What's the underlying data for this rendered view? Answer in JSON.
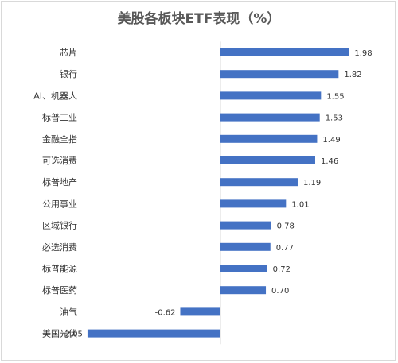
{
  "chart_data": {
    "type": "bar",
    "orientation": "horizontal",
    "title": "美股各板块ETF表现（%）",
    "categories": [
      "芯片",
      "银行",
      "AI、机器人",
      "标普工业",
      "金融全指",
      "可选消费",
      "标普地产",
      "公用事业",
      "区域银行",
      "必选消费",
      "标普能源",
      "标普医药",
      "油气",
      "美国光伏"
    ],
    "values": [
      1.98,
      1.82,
      1.55,
      1.53,
      1.49,
      1.46,
      1.19,
      1.01,
      0.78,
      0.77,
      0.72,
      0.7,
      -0.62,
      -2.05
    ],
    "value_labels": [
      "1.98",
      "1.82",
      "1.55",
      "1.53",
      "1.49",
      "1.46",
      "1.19",
      "1.01",
      "0.78",
      "0.77",
      "0.72",
      "0.70",
      "-0.62",
      "-2.05"
    ],
    "xlim": [
      -2.05,
      1.98
    ],
    "grid": false,
    "legend": "none",
    "bar_color": "#4472c4",
    "axis_color": "#d9d9d9"
  }
}
